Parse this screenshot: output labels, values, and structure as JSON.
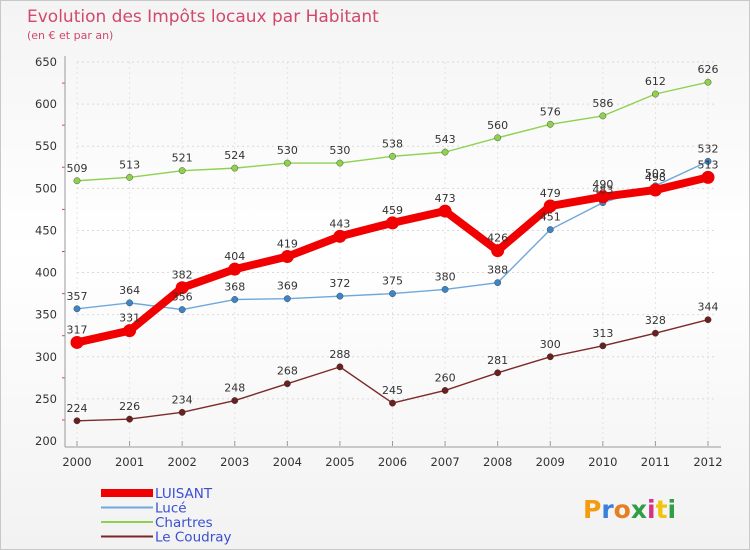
{
  "chart_data": {
    "type": "line",
    "title": "Evolution des Impôts locaux par Habitant",
    "subtitle": "(en € et par an)",
    "xlabel": "",
    "ylabel": "",
    "ylim": [
      200,
      650
    ],
    "y_ticks": [
      200,
      250,
      300,
      350,
      400,
      450,
      500,
      550,
      600,
      650
    ],
    "categories": [
      "2000",
      "2001",
      "2002",
      "2003",
      "2004",
      "2005",
      "2006",
      "2007",
      "2008",
      "2009",
      "2010",
      "2011",
      "2012"
    ],
    "legend_position": "bottom-left",
    "series": [
      {
        "name": "Chartres",
        "color": "#8fd14f",
        "point_color": "#8fd14f",
        "values": [
          509,
          513,
          521,
          524,
          530,
          530,
          538,
          543,
          560,
          576,
          586,
          612,
          626
        ]
      },
      {
        "name": "Lucé",
        "color": "#6fa8dc",
        "point_color": "#3d85c6",
        "values": [
          357,
          364,
          356,
          368,
          369,
          372,
          375,
          380,
          388,
          451,
          483,
          503,
          532
        ]
      },
      {
        "name": "Le Coudray",
        "color": "#7b2a2a",
        "point_color": "#6b1f1f",
        "values": [
          224,
          226,
          234,
          248,
          268,
          288,
          245,
          260,
          281,
          300,
          313,
          328,
          344
        ]
      },
      {
        "name": "LUISANT",
        "color": "#f00000",
        "point_color": "#f00000",
        "values": [
          317,
          331,
          382,
          404,
          419,
          443,
          459,
          473,
          426,
          479,
          490,
          498,
          513
        ]
      }
    ],
    "legend_order": [
      "LUISANT",
      "Lucé",
      "Chartres",
      "Le Coudray"
    ]
  },
  "logo": {
    "letters": [
      "P",
      "r",
      "o",
      "x",
      "i",
      "t",
      "i"
    ],
    "colors": [
      "#f39c12",
      "#3a7fd9",
      "#e67e22",
      "#2f9e44",
      "#d63384",
      "#f1c40f",
      "#2f9e44"
    ]
  }
}
